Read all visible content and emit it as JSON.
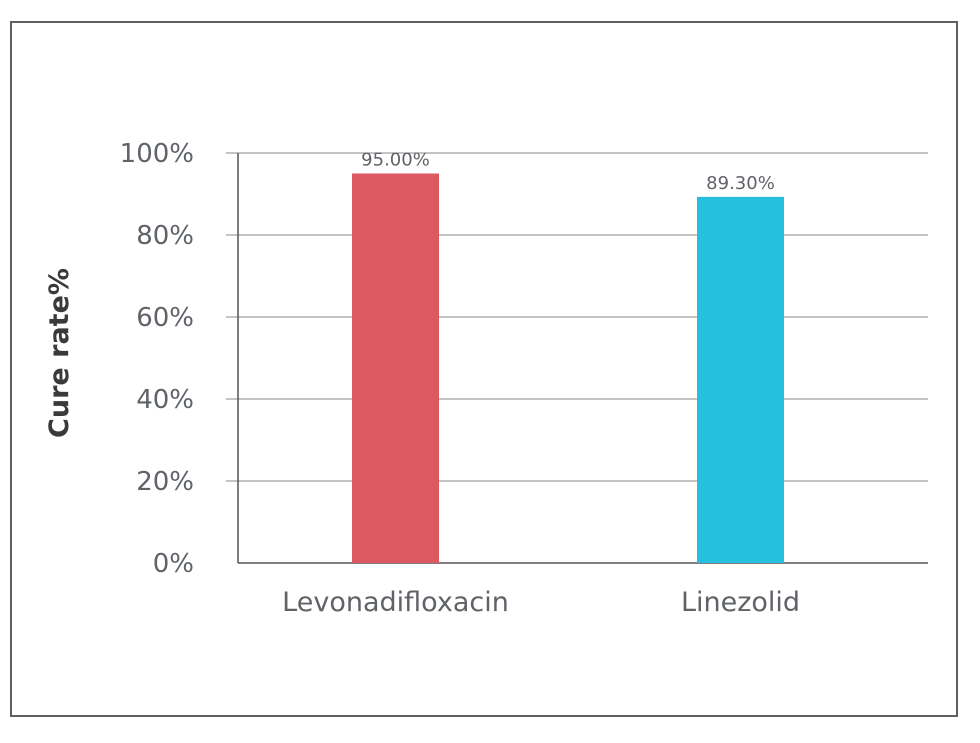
{
  "chart_data": {
    "type": "bar",
    "title": "",
    "xlabel": "",
    "ylabel": "Cure rate%",
    "ylim": [
      0,
      100
    ],
    "yticks": [
      "0%",
      "20%",
      "40%",
      "60%",
      "80%",
      "100%"
    ],
    "categories": [
      "Levonadifloxacin",
      "Linezolid"
    ],
    "values": [
      95.0,
      89.3
    ],
    "data_labels": [
      "95.00%",
      "89.30%"
    ],
    "colors": [
      "#dc5961",
      "#25c0dd"
    ],
    "grid": true,
    "legend": "none"
  }
}
